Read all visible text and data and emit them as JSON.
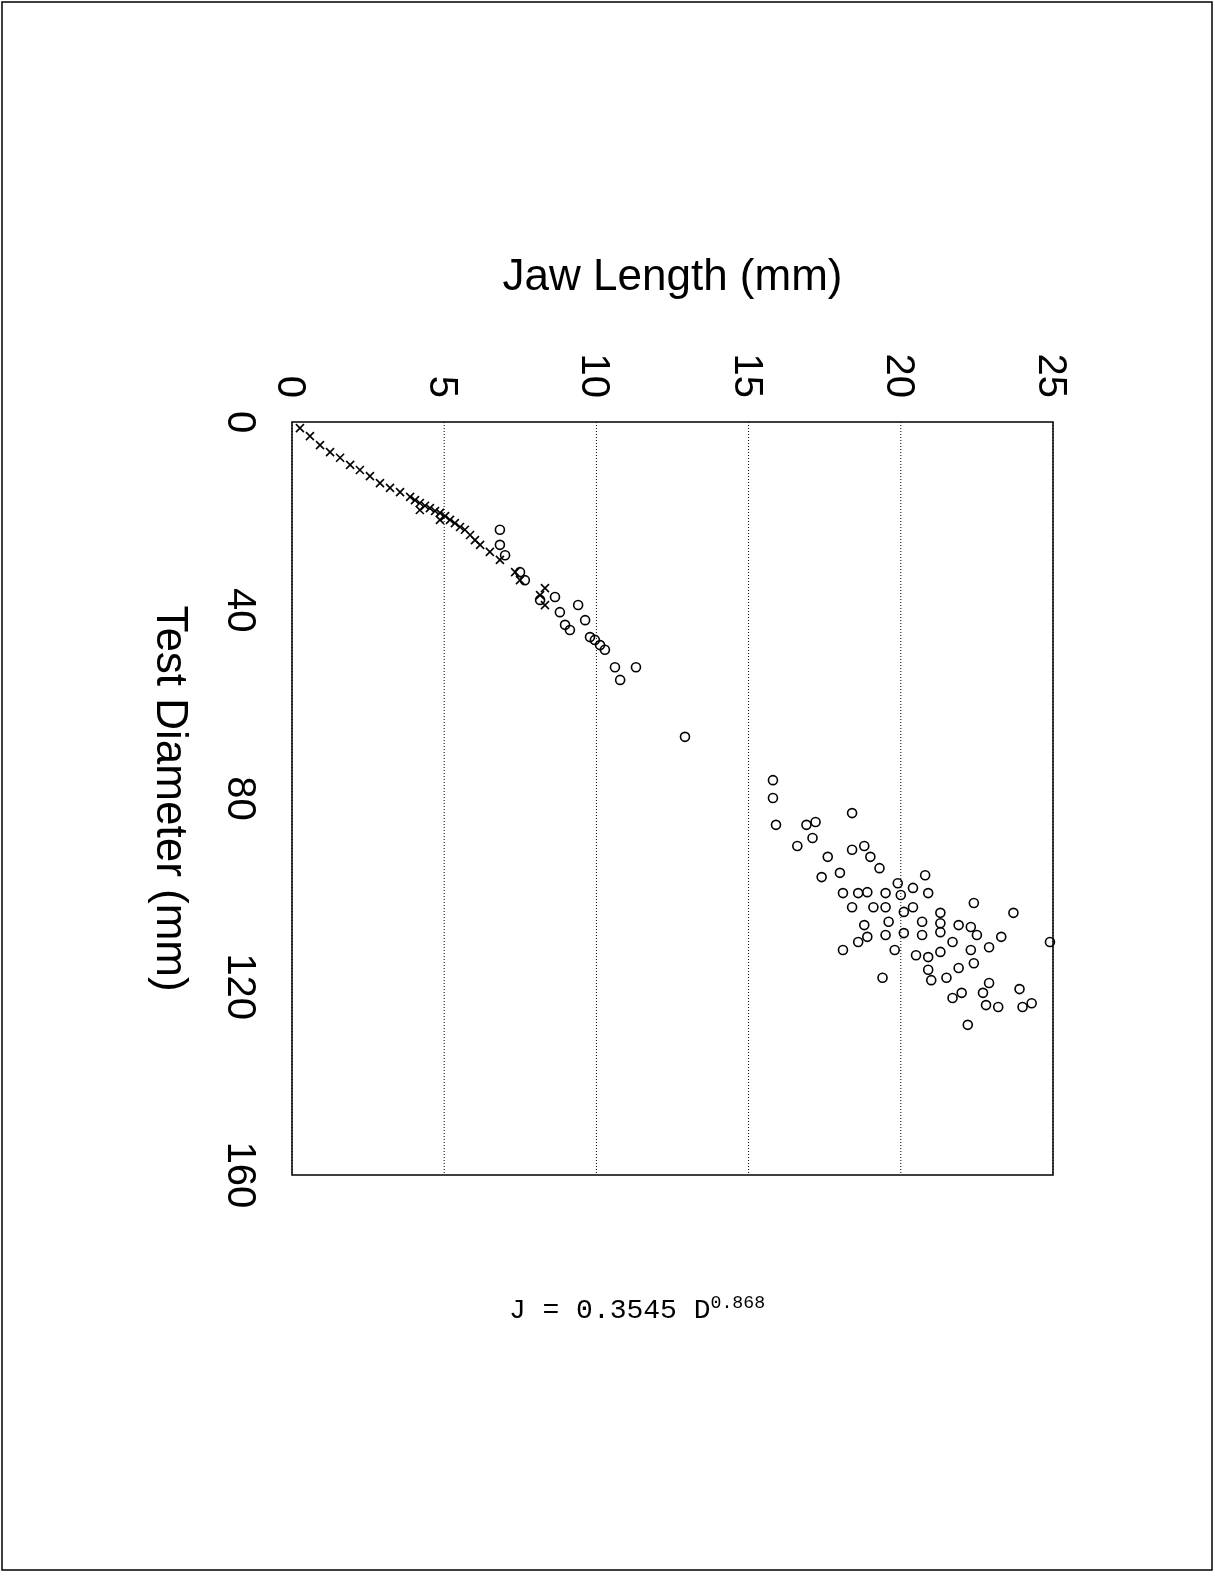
{
  "chart_data": {
    "type": "scatter",
    "xlabel": "Jaw Length (mm)",
    "ylabel": "Test Diameter (mm)",
    "xlim": [
      0,
      25
    ],
    "xticks": [
      0,
      5,
      10,
      15,
      20,
      25
    ],
    "ylim": [
      160,
      0
    ],
    "yticks": [
      0,
      40,
      80,
      120,
      160
    ],
    "grid": "x",
    "annotations": [
      "J = 0.3545 D$^{0.868}$"
    ],
    "series": [
      {
        "color": "#000000",
        "marker": "cross",
        "values": [
          1.3,
          3.0,
          4.9,
          6.4,
          7.6,
          9.1,
          10.2,
          11.5,
          13.0,
          14.0,
          14.9,
          15.9,
          16.6,
          17.2,
          17.8,
          18.3,
          18.9,
          19.3,
          20.0,
          20.8,
          21.5,
          22.3,
          22.9,
          24.0,
          25.1,
          26.1,
          27.6,
          29.3,
          31.9,
          33.6,
          36.8,
          38.9,
          35.3,
          18.7,
          20.8
        ],
        "x": [
          0.26,
          0.59,
          0.92,
          1.25,
          1.58,
          1.91,
          2.23,
          2.56,
          2.89,
          3.22,
          3.55,
          3.88,
          4.04,
          4.2,
          4.37,
          4.53,
          4.7,
          4.86,
          5.03,
          5.19,
          5.35,
          5.52,
          5.68,
          5.85,
          6.01,
          6.18,
          6.5,
          6.83,
          7.33,
          7.49,
          8.15,
          8.31,
          8.31,
          4.2,
          4.86
        ]
      },
      {
        "color": "#000000",
        "marker": "circle",
        "values": [
          22.9,
          26.1,
          28.3,
          31.9,
          33.6,
          37.8,
          37.2,
          40.4,
          43.1,
          44.2,
          38.9,
          42.1,
          45.7,
          46.3,
          47.4,
          48.4,
          52.1,
          54.8,
          52.1,
          66.9,
          76.1,
          79.9,
          85.6,
          83.1,
          85.6,
          85.0,
          90.1,
          88.4,
          92.4,
          90.9,
          90.1,
          92.4,
          96.7,
          95.8,
          94.8,
          100.1,
          100.1,
          99.9,
          100.1,
          98.0,
          99.0,
          96.3,
          100.1,
          103.1,
          103.1,
          103.1,
          100.5,
          103.1,
          104.3,
          102.2,
          104.3,
          106.9,
          106.2,
          104.1,
          106.2,
          106.5,
          106.9,
          107.3,
          109.4,
          110.5,
          109.0,
          108.6,
          109.0,
          108.4,
          110.5,
          109.0,
          109.4,
          111.6,
          110.5,
          112.2,
          112.2,
          113.3,
          113.7,
          112.6,
          112.2,
          115.0,
          116.0,
          116.4,
          118.1,
          118.6,
          118.1,
          122.4,
          121.3,
          121.3,
          119.2,
          123.9,
          124.3,
          120.5,
          124.3,
          123.5,
          128.1
        ],
        "x": [
          6.83,
          6.83,
          7.0,
          7.49,
          7.65,
          8.15,
          8.64,
          8.8,
          8.97,
          9.13,
          9.4,
          9.63,
          9.79,
          9.95,
          10.12,
          10.28,
          10.61,
          10.78,
          11.3,
          12.91,
          15.8,
          15.8,
          15.9,
          18.4,
          16.9,
          17.2,
          16.6,
          17.1,
          17.6,
          18.4,
          18.8,
          19.0,
          17.4,
          18.0,
          19.3,
          18.1,
          18.6,
          18.9,
          19.5,
          19.9,
          20.4,
          20.8,
          20.9,
          18.4,
          19.1,
          19.5,
          20.0,
          20.4,
          21.3,
          22.4,
          23.7,
          18.8,
          19.6,
          20.1,
          20.7,
          21.3,
          21.9,
          22.3,
          18.9,
          18.6,
          19.5,
          20.1,
          20.7,
          21.3,
          21.7,
          22.5,
          23.3,
          22.9,
          24.9,
          18.1,
          19.8,
          20.5,
          20.9,
          21.3,
          22.3,
          22.4,
          21.9,
          20.9,
          21.5,
          21.0,
          19.4,
          21.7,
          22.0,
          22.7,
          22.9,
          22.8,
          23.2,
          23.9,
          24.0,
          24.3,
          22.2
        ]
      }
    ]
  }
}
